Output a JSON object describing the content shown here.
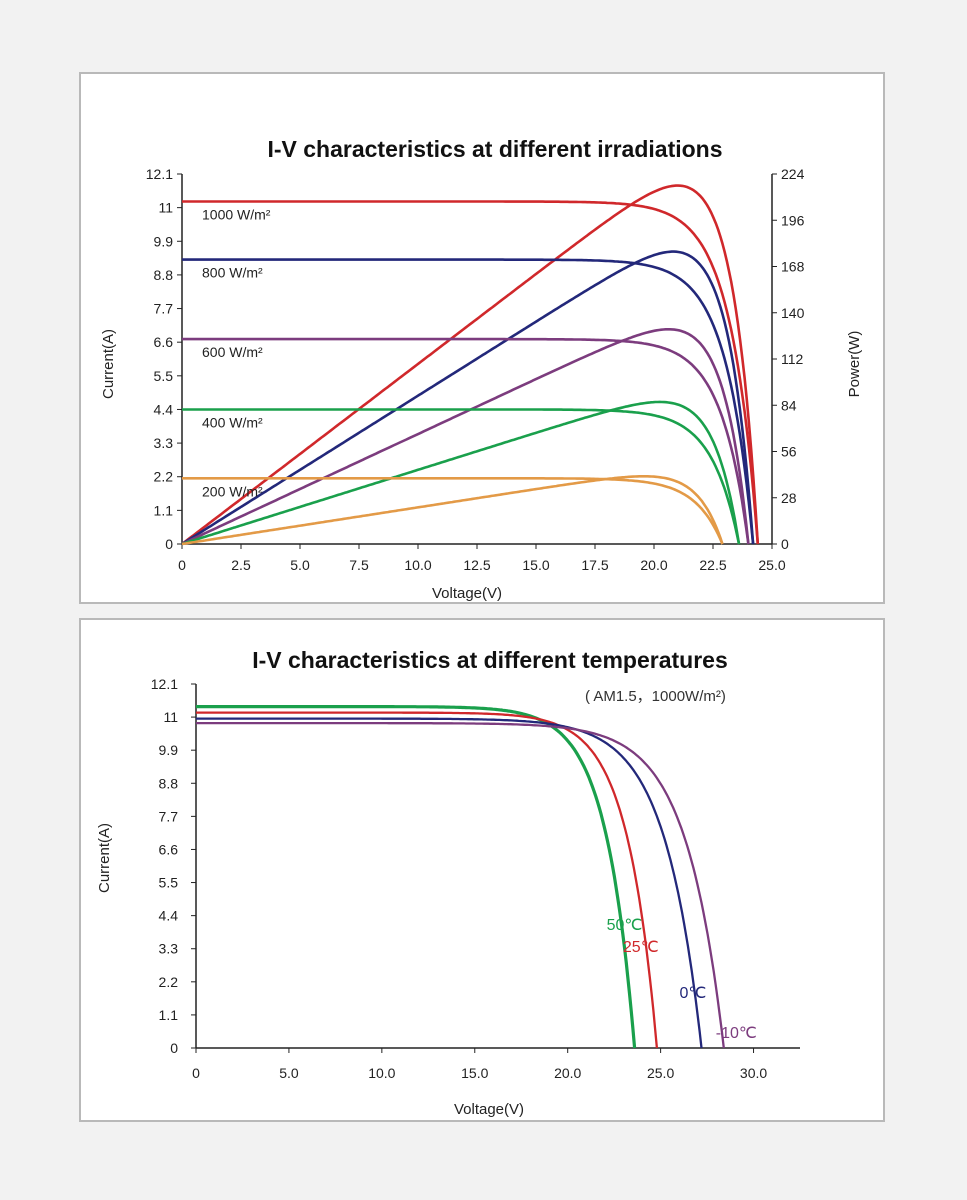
{
  "chart_data": [
    {
      "type": "line",
      "title": "I-V characteristics at different irradiations",
      "xlabel": "Voltage(V)",
      "ylabel": "Current(A)",
      "y2label": "Power(W)",
      "xlim": [
        0,
        25
      ],
      "ylim": [
        0,
        12.1
      ],
      "y2lim": [
        0,
        224
      ],
      "xticks": [
        "0",
        "2.5",
        "5.0",
        "7.5",
        "10.0",
        "12.5",
        "15.0",
        "17.5",
        "20.0",
        "22.5",
        "25.0"
      ],
      "yticks": [
        "0",
        "1.1",
        "2.2",
        "3.3",
        "4.4",
        "5.5",
        "6.6",
        "7.7",
        "8.8",
        "9.9",
        "11",
        "12.1"
      ],
      "y2ticks": [
        "0",
        "28",
        "56",
        "84",
        "112",
        "140",
        "168",
        "196",
        "224"
      ],
      "grid": false,
      "series": [
        {
          "name": "1000 W/m²",
          "color": "#d0282b",
          "isc": 11.2,
          "voc": 24.4,
          "vmp": 19.8,
          "pmax": 217
        },
        {
          "name": "800 W/m²",
          "color": "#23287a",
          "isc": 9.3,
          "voc": 24.2,
          "vmp": 19.8,
          "pmax": 177
        },
        {
          "name": "600 W/m²",
          "color": "#7c3c7e",
          "isc": 6.7,
          "voc": 24.0,
          "vmp": 19.8,
          "pmax": 130
        },
        {
          "name": "400 W/m²",
          "color": "#1aa04c",
          "isc": 4.4,
          "voc": 23.6,
          "vmp": 19.8,
          "pmax": 86
        },
        {
          "name": "200 W/m²",
          "color": "#e39a47",
          "isc": 2.15,
          "voc": 22.9,
          "vmp": 19.5,
          "pmax": 41
        }
      ]
    },
    {
      "type": "line",
      "title": "I-V characteristics at different temperatures",
      "subtitle": "( AM1.5，1000W/m²)",
      "xlabel": "Voltage(V)",
      "ylabel": "Current(A)",
      "xlim": [
        0,
        32.5
      ],
      "ylim": [
        0,
        12.1
      ],
      "xticks": [
        "0",
        "5.0",
        "10.0",
        "15.0",
        "20.0",
        "25.0",
        "30.0"
      ],
      "yticks": [
        "0",
        "1.1",
        "2.2",
        "3.3",
        "4.4",
        "5.5",
        "6.6",
        "7.7",
        "8.8",
        "9.9",
        "11",
        "12.1"
      ],
      "grid": false,
      "series": [
        {
          "name": "50℃",
          "color": "#1aa04c",
          "isc": 11.35,
          "voc": 23.6,
          "knee": 17.5
        },
        {
          "name": "25℃",
          "color": "#d0282b",
          "isc": 11.15,
          "voc": 24.8,
          "knee": 18.5
        },
        {
          "name": "0℃",
          "color": "#23287a",
          "isc": 10.95,
          "voc": 27.2,
          "knee": 19.5
        },
        {
          "name": "-10℃",
          "color": "#7c3c7e",
          "isc": 10.8,
          "voc": 28.4,
          "knee": 20.5
        }
      ]
    }
  ]
}
